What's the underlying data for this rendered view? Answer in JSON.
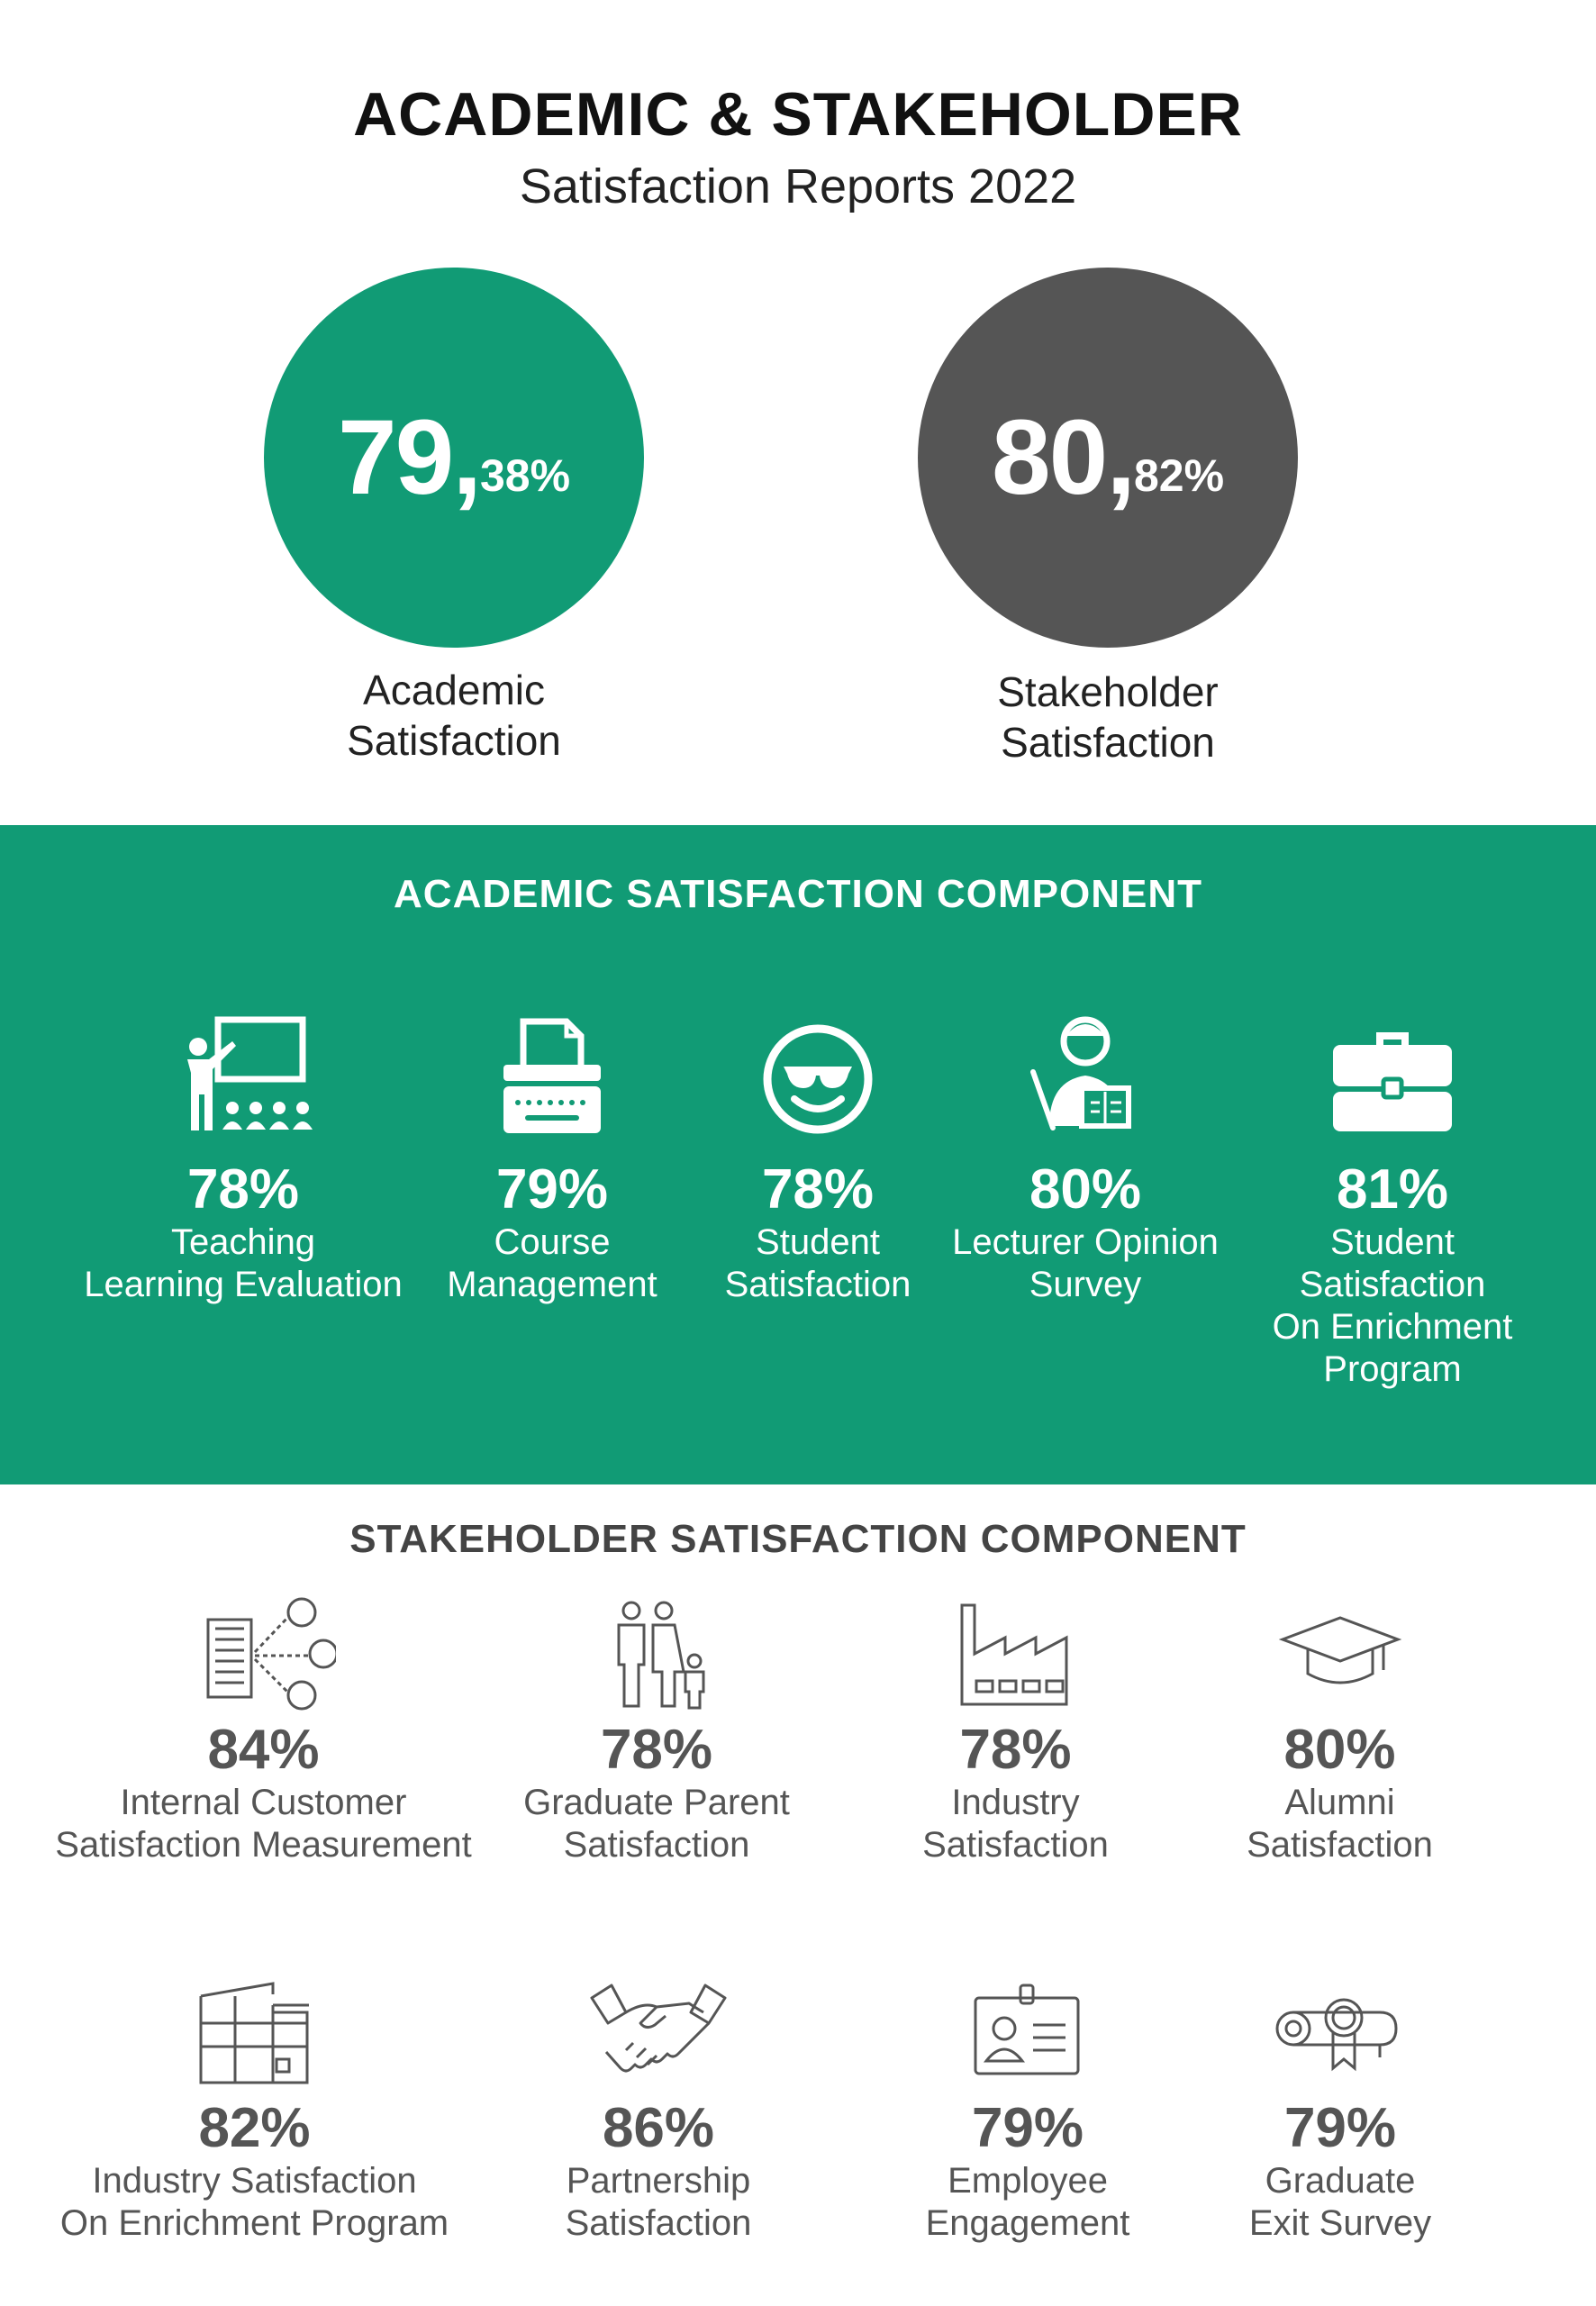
{
  "header": {
    "title": "ACADEMIC & STAKEHOLDER",
    "subtitle": "Satisfaction Reports 2022"
  },
  "summary": {
    "academic": {
      "value_main": "79,",
      "value_decimal": "38%",
      "label_line1": "Academic",
      "label_line2": "Satisfaction",
      "color": "#119b75"
    },
    "stakeholder": {
      "value_main": "80,",
      "value_decimal": "82%",
      "label_line1": "Stakeholder",
      "label_line2": "Satisfaction",
      "color": "#555555"
    }
  },
  "academic_component": {
    "title": "ACADEMIC SATISFACTION COMPONENT",
    "background": "#119b75",
    "items": [
      {
        "icon": "teacher-board-icon",
        "percent": "78%",
        "label_lines": [
          "Teaching",
          "Learning Evaluation"
        ]
      },
      {
        "icon": "typewriter-icon",
        "percent": "79%",
        "label_lines": [
          "Course",
          "Management"
        ]
      },
      {
        "icon": "sunglasses-smiley-icon",
        "percent": "78%",
        "label_lines": [
          "Student",
          "Satisfaction"
        ]
      },
      {
        "icon": "lecturer-icon",
        "percent": "80%",
        "label_lines": [
          "Lecturer Opinion",
          "Survey"
        ]
      },
      {
        "icon": "briefcase-icon",
        "percent": "81%",
        "label_lines": [
          "Student",
          "Satisfaction",
          "On Enrichment",
          "Program"
        ]
      }
    ]
  },
  "stakeholder_component": {
    "title": "STAKEHOLDER SATISFACTION COMPONENT",
    "items": [
      {
        "icon": "building-network-icon",
        "percent": "84%",
        "label_lines": [
          "Internal Customer",
          "Satisfaction Measurement"
        ]
      },
      {
        "icon": "family-icon",
        "percent": "78%",
        "label_lines": [
          "Graduate Parent",
          "Satisfaction"
        ]
      },
      {
        "icon": "factory-icon",
        "percent": "78%",
        "label_lines": [
          "Industry",
          "Satisfaction"
        ]
      },
      {
        "icon": "graduation-cap-icon",
        "percent": "80%",
        "label_lines": [
          "Alumni",
          "Satisfaction"
        ]
      },
      {
        "icon": "warehouse-icon",
        "percent": "82%",
        "label_lines": [
          "Industry Satisfaction",
          "On Enrichment Program"
        ]
      },
      {
        "icon": "handshake-icon",
        "percent": "86%",
        "label_lines": [
          "Partnership",
          "Satisfaction"
        ]
      },
      {
        "icon": "id-card-icon",
        "percent": "79%",
        "label_lines": [
          "Employee",
          "Engagement"
        ]
      },
      {
        "icon": "diploma-icon",
        "percent": "79%",
        "label_lines": [
          "Graduate",
          "Exit Survey"
        ]
      }
    ]
  }
}
